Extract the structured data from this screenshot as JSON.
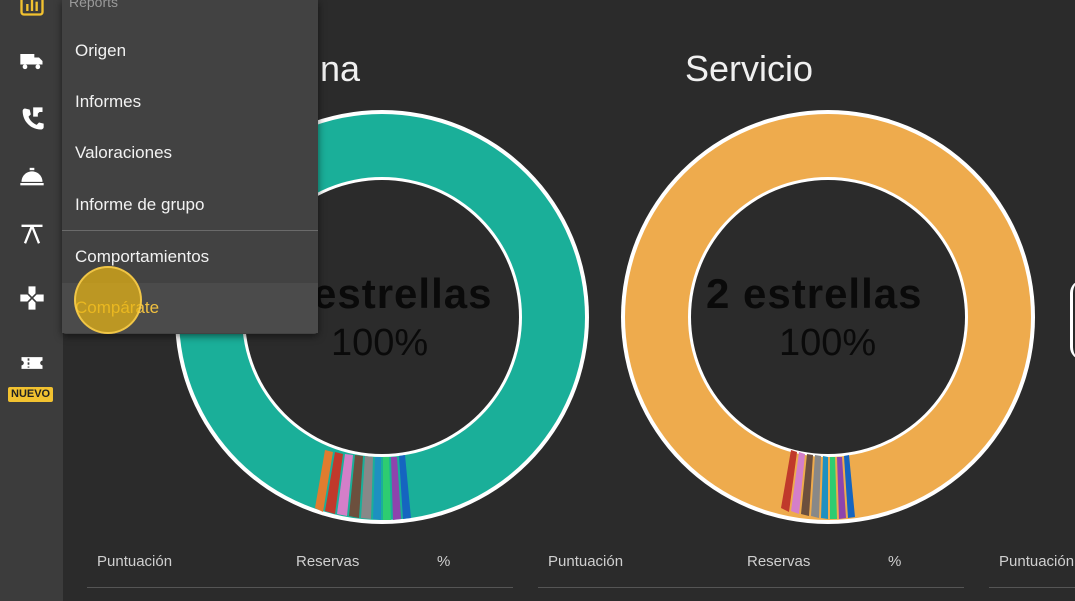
{
  "sidebar": {
    "badge": "NUEVO",
    "icons": [
      "reports-icon",
      "truck-icon",
      "phone-transfer-icon",
      "service-bell-icon",
      "beach-icon",
      "gamepad-icon",
      "ticket-icon"
    ]
  },
  "menu": {
    "header": "Reports",
    "items": [
      {
        "label": "Origen"
      },
      {
        "label": "Informes"
      },
      {
        "label": "Valoraciones"
      },
      {
        "label": "Informe de grupo"
      },
      {
        "label": "Comportamientos"
      },
      {
        "label": "Compárate"
      }
    ],
    "active_index": 5
  },
  "charts": [
    {
      "title_partial": "na",
      "center_label": "estrellas",
      "center_percent": "100%",
      "color": "#1aaf99"
    },
    {
      "title": "Servicio",
      "center_label": "2 estrellas",
      "center_percent": "100%",
      "color": "#eeab4d"
    }
  ],
  "table": {
    "headers": {
      "score": "Puntuación",
      "bookings": "Reservas",
      "percent": "%"
    }
  },
  "colors": {
    "teal": "#1aaf99",
    "orange": "#eeab4d",
    "accent": "#f2c230"
  }
}
